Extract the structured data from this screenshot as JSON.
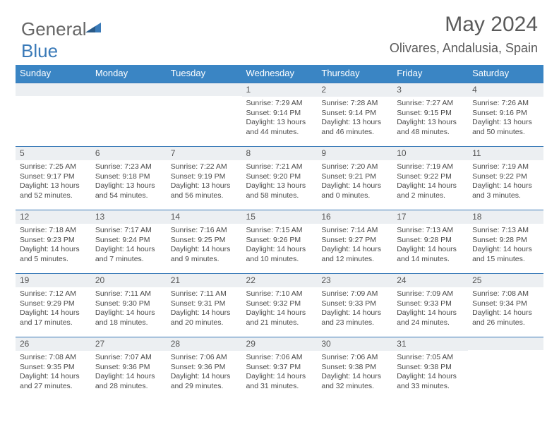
{
  "logo": {
    "part1": "General",
    "part2": "Blue"
  },
  "title": "May 2024",
  "subtitle": "Olivares, Andalusia, Spain",
  "colors": {
    "header_bg": "#3a85c4",
    "header_text": "#ffffff",
    "border": "#3a7ab8",
    "daynum_bg": "#eceff2",
    "text": "#4a4a4a"
  },
  "weekdays": [
    "Sunday",
    "Monday",
    "Tuesday",
    "Wednesday",
    "Thursday",
    "Friday",
    "Saturday"
  ],
  "weeks": [
    [
      {
        "n": "",
        "lines": []
      },
      {
        "n": "",
        "lines": []
      },
      {
        "n": "",
        "lines": []
      },
      {
        "n": "1",
        "lines": [
          "Sunrise: 7:29 AM",
          "Sunset: 9:14 PM",
          "Daylight: 13 hours",
          "and 44 minutes."
        ]
      },
      {
        "n": "2",
        "lines": [
          "Sunrise: 7:28 AM",
          "Sunset: 9:14 PM",
          "Daylight: 13 hours",
          "and 46 minutes."
        ]
      },
      {
        "n": "3",
        "lines": [
          "Sunrise: 7:27 AM",
          "Sunset: 9:15 PM",
          "Daylight: 13 hours",
          "and 48 minutes."
        ]
      },
      {
        "n": "4",
        "lines": [
          "Sunrise: 7:26 AM",
          "Sunset: 9:16 PM",
          "Daylight: 13 hours",
          "and 50 minutes."
        ]
      }
    ],
    [
      {
        "n": "5",
        "lines": [
          "Sunrise: 7:25 AM",
          "Sunset: 9:17 PM",
          "Daylight: 13 hours",
          "and 52 minutes."
        ]
      },
      {
        "n": "6",
        "lines": [
          "Sunrise: 7:23 AM",
          "Sunset: 9:18 PM",
          "Daylight: 13 hours",
          "and 54 minutes."
        ]
      },
      {
        "n": "7",
        "lines": [
          "Sunrise: 7:22 AM",
          "Sunset: 9:19 PM",
          "Daylight: 13 hours",
          "and 56 minutes."
        ]
      },
      {
        "n": "8",
        "lines": [
          "Sunrise: 7:21 AM",
          "Sunset: 9:20 PM",
          "Daylight: 13 hours",
          "and 58 minutes."
        ]
      },
      {
        "n": "9",
        "lines": [
          "Sunrise: 7:20 AM",
          "Sunset: 9:21 PM",
          "Daylight: 14 hours",
          "and 0 minutes."
        ]
      },
      {
        "n": "10",
        "lines": [
          "Sunrise: 7:19 AM",
          "Sunset: 9:22 PM",
          "Daylight: 14 hours",
          "and 2 minutes."
        ]
      },
      {
        "n": "11",
        "lines": [
          "Sunrise: 7:19 AM",
          "Sunset: 9:22 PM",
          "Daylight: 14 hours",
          "and 3 minutes."
        ]
      }
    ],
    [
      {
        "n": "12",
        "lines": [
          "Sunrise: 7:18 AM",
          "Sunset: 9:23 PM",
          "Daylight: 14 hours",
          "and 5 minutes."
        ]
      },
      {
        "n": "13",
        "lines": [
          "Sunrise: 7:17 AM",
          "Sunset: 9:24 PM",
          "Daylight: 14 hours",
          "and 7 minutes."
        ]
      },
      {
        "n": "14",
        "lines": [
          "Sunrise: 7:16 AM",
          "Sunset: 9:25 PM",
          "Daylight: 14 hours",
          "and 9 minutes."
        ]
      },
      {
        "n": "15",
        "lines": [
          "Sunrise: 7:15 AM",
          "Sunset: 9:26 PM",
          "Daylight: 14 hours",
          "and 10 minutes."
        ]
      },
      {
        "n": "16",
        "lines": [
          "Sunrise: 7:14 AM",
          "Sunset: 9:27 PM",
          "Daylight: 14 hours",
          "and 12 minutes."
        ]
      },
      {
        "n": "17",
        "lines": [
          "Sunrise: 7:13 AM",
          "Sunset: 9:28 PM",
          "Daylight: 14 hours",
          "and 14 minutes."
        ]
      },
      {
        "n": "18",
        "lines": [
          "Sunrise: 7:13 AM",
          "Sunset: 9:28 PM",
          "Daylight: 14 hours",
          "and 15 minutes."
        ]
      }
    ],
    [
      {
        "n": "19",
        "lines": [
          "Sunrise: 7:12 AM",
          "Sunset: 9:29 PM",
          "Daylight: 14 hours",
          "and 17 minutes."
        ]
      },
      {
        "n": "20",
        "lines": [
          "Sunrise: 7:11 AM",
          "Sunset: 9:30 PM",
          "Daylight: 14 hours",
          "and 18 minutes."
        ]
      },
      {
        "n": "21",
        "lines": [
          "Sunrise: 7:11 AM",
          "Sunset: 9:31 PM",
          "Daylight: 14 hours",
          "and 20 minutes."
        ]
      },
      {
        "n": "22",
        "lines": [
          "Sunrise: 7:10 AM",
          "Sunset: 9:32 PM",
          "Daylight: 14 hours",
          "and 21 minutes."
        ]
      },
      {
        "n": "23",
        "lines": [
          "Sunrise: 7:09 AM",
          "Sunset: 9:33 PM",
          "Daylight: 14 hours",
          "and 23 minutes."
        ]
      },
      {
        "n": "24",
        "lines": [
          "Sunrise: 7:09 AM",
          "Sunset: 9:33 PM",
          "Daylight: 14 hours",
          "and 24 minutes."
        ]
      },
      {
        "n": "25",
        "lines": [
          "Sunrise: 7:08 AM",
          "Sunset: 9:34 PM",
          "Daylight: 14 hours",
          "and 26 minutes."
        ]
      }
    ],
    [
      {
        "n": "26",
        "lines": [
          "Sunrise: 7:08 AM",
          "Sunset: 9:35 PM",
          "Daylight: 14 hours",
          "and 27 minutes."
        ]
      },
      {
        "n": "27",
        "lines": [
          "Sunrise: 7:07 AM",
          "Sunset: 9:36 PM",
          "Daylight: 14 hours",
          "and 28 minutes."
        ]
      },
      {
        "n": "28",
        "lines": [
          "Sunrise: 7:06 AM",
          "Sunset: 9:36 PM",
          "Daylight: 14 hours",
          "and 29 minutes."
        ]
      },
      {
        "n": "29",
        "lines": [
          "Sunrise: 7:06 AM",
          "Sunset: 9:37 PM",
          "Daylight: 14 hours",
          "and 31 minutes."
        ]
      },
      {
        "n": "30",
        "lines": [
          "Sunrise: 7:06 AM",
          "Sunset: 9:38 PM",
          "Daylight: 14 hours",
          "and 32 minutes."
        ]
      },
      {
        "n": "31",
        "lines": [
          "Sunrise: 7:05 AM",
          "Sunset: 9:38 PM",
          "Daylight: 14 hours",
          "and 33 minutes."
        ]
      },
      {
        "n": "",
        "lines": []
      }
    ]
  ]
}
